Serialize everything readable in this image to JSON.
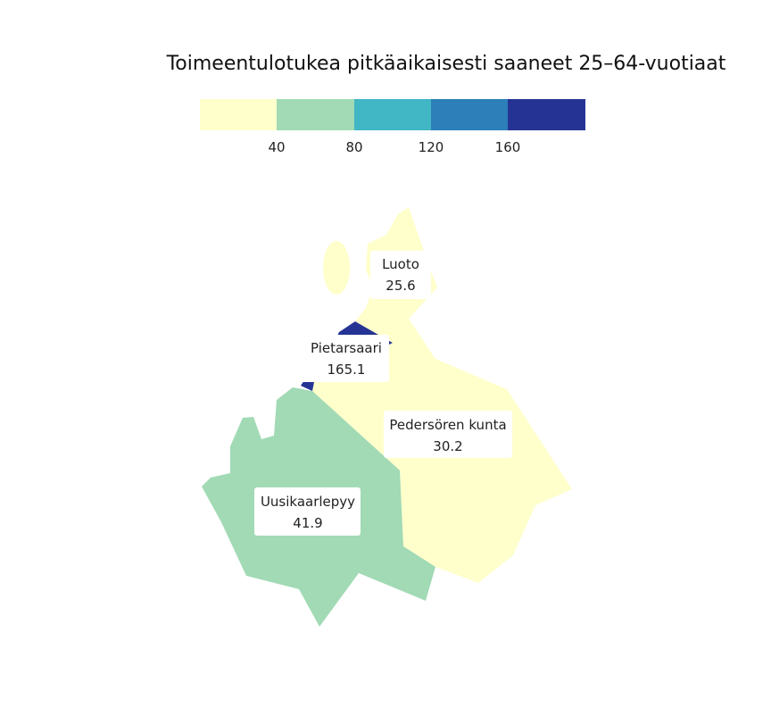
{
  "title": "Toimeentulotukea pitkäaikaisesti saaneet 25–64-vuotiaat",
  "legend": {
    "colors": [
      "#ffffcc",
      "#a1dab4",
      "#41b6c4",
      "#2c7fb8",
      "#253494"
    ],
    "ticks": [
      "40",
      "80",
      "120",
      "160"
    ]
  },
  "regions": [
    {
      "name": "Luoto",
      "value": "25.6",
      "color": "#ffffcc"
    },
    {
      "name": "Pietarsaari",
      "value": "165.1",
      "color": "#253494"
    },
    {
      "name": "Pedersören kunta",
      "value": "30.2",
      "color": "#ffffcc"
    },
    {
      "name": "Uusikaarlepyy",
      "value": "41.9",
      "color": "#a1dab4"
    }
  ]
}
